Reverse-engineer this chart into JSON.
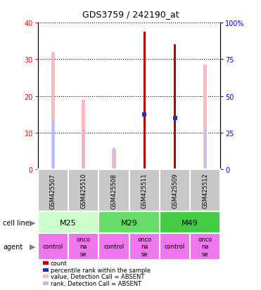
{
  "title": "GDS3759 / 242190_at",
  "samples": [
    "GSM425507",
    "GSM425510",
    "GSM425508",
    "GSM425511",
    "GSM425509",
    "GSM425512"
  ],
  "cell_lines": [
    [
      "M25",
      0,
      2
    ],
    [
      "M29",
      2,
      4
    ],
    [
      "M49",
      4,
      6
    ]
  ],
  "agents": [
    "control",
    "onconase",
    "control",
    "onconase",
    "control",
    "onconase"
  ],
  "absent_value_height": [
    32,
    19,
    5.5,
    null,
    null,
    28.5
  ],
  "absent_rank_height": [
    13.5,
    11,
    6,
    null,
    null,
    11
  ],
  "count_height": [
    null,
    null,
    null,
    37.5,
    34,
    null
  ],
  "percentile_height": [
    null,
    null,
    null,
    15,
    14,
    null
  ],
  "ylim": [
    0,
    40
  ],
  "y2lim": [
    0,
    100
  ],
  "yticks": [
    0,
    10,
    20,
    30,
    40
  ],
  "y2ticks": [
    0,
    25,
    50,
    75,
    100
  ],
  "y2labels": [
    "0",
    "25",
    "50",
    "75",
    "100%"
  ],
  "color_count": "#bb0000",
  "color_percentile": "#2233bb",
  "color_absent_value": "#ffbbbb",
  "color_absent_rank": "#bbbbff",
  "color_cell_line_M25": "#ccffcc",
  "color_cell_line_M29": "#66dd66",
  "color_cell_line_M49": "#44cc44",
  "color_agent": "#ee77ee",
  "color_gray": "#c8c8c8",
  "absent_bar_width": 0.12,
  "rank_bar_width": 0.06,
  "count_bar_width": 0.08,
  "percentile_sq_size": 5
}
